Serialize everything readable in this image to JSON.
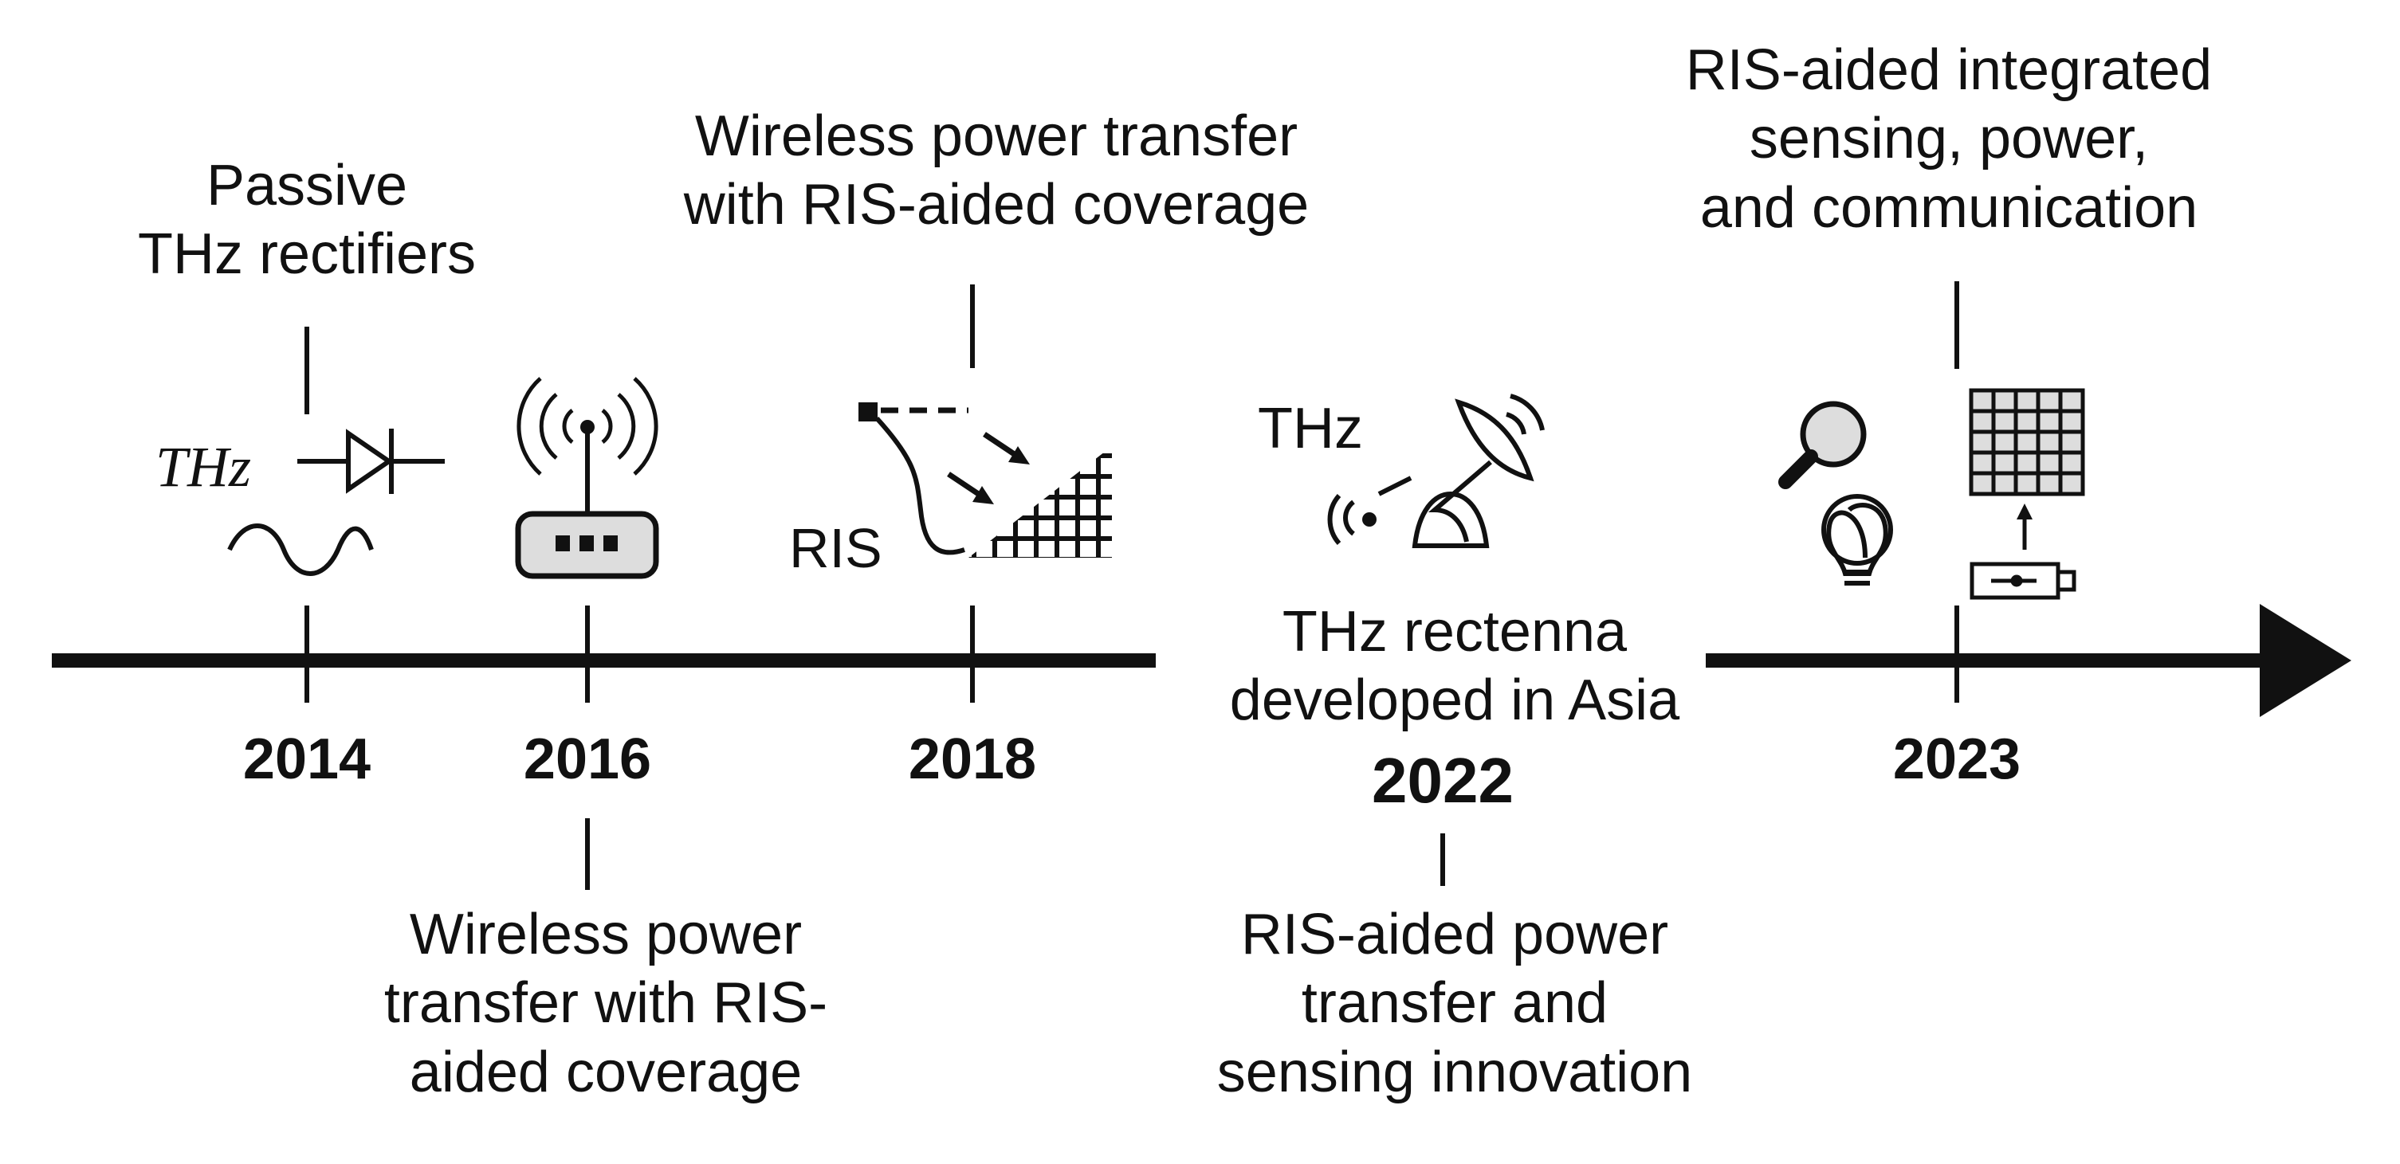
{
  "diagram": {
    "kind": "timeline",
    "events": [
      {
        "year": "2014",
        "lines": [
          "Passive",
          "THz rectifiers"
        ],
        "icons": [
          "thz-diode-icon",
          "sine-wave-icon"
        ],
        "icon_text": "THz"
      },
      {
        "year": "2016",
        "lines": [
          "Wireless power",
          "transfer with RIS-",
          "aided coverage"
        ],
        "icons": [
          "wifi-router-icon"
        ]
      },
      {
        "year": "2018",
        "lines": [
          "Wireless power transfer",
          "with RIS-aided coverage"
        ],
        "icons": [
          "ris-reflection-icon"
        ],
        "icon_text": "RIS"
      },
      {
        "year": "2022",
        "lines": [
          "RIS-aided power",
          "transfer and",
          "sensing innovation"
        ],
        "extra_lines": [
          "THz rectenna",
          "developed in Asia"
        ],
        "icons": [
          "satellite-dish-icon"
        ],
        "icon_text": "THz"
      },
      {
        "year": "2023",
        "lines": [
          "RIS-aided integrated",
          "sensing, power,",
          "and communication"
        ],
        "icons": [
          "magnifier-icon",
          "lightbulb-icon",
          "ris-grid-icon",
          "transmitter-icon"
        ]
      }
    ]
  },
  "colors": {
    "ink": "#111111",
    "fill_gray": "#dddddd",
    "background": "#ffffff"
  }
}
